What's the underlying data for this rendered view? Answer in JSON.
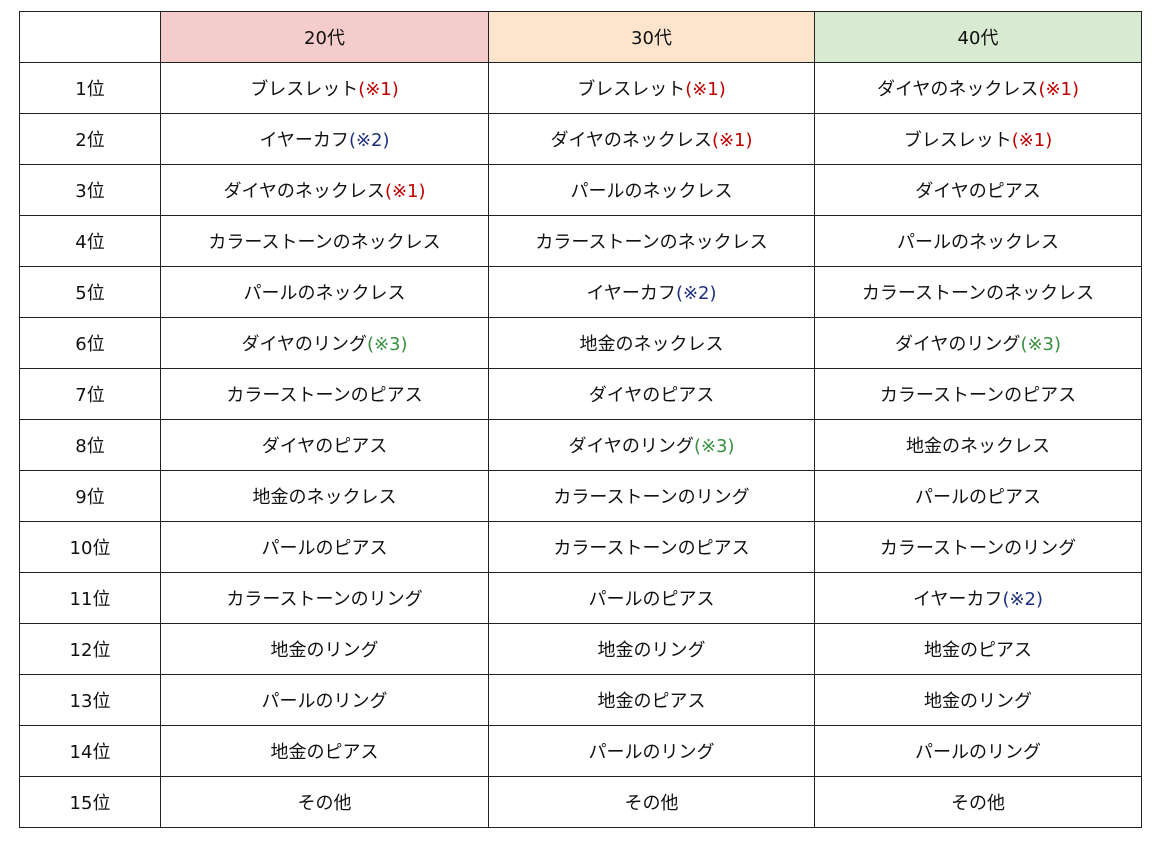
{
  "colors": {
    "header_20": "#f4cccc",
    "header_30": "#fde5cd",
    "header_40": "#d9ead3",
    "note_1": "#c00000",
    "note_2": "#1f2f80",
    "note_3": "#38903f"
  },
  "headers": [
    "",
    "20代",
    "30代",
    "40代"
  ],
  "rows": [
    {
      "rank": "1位",
      "cells": [
        {
          "text": "ブレスレット",
          "note": "(※1)",
          "note_type": "note_1"
        },
        {
          "text": "ブレスレット",
          "note": "(※1)",
          "note_type": "note_1"
        },
        {
          "text": "ダイヤのネックレス",
          "note": "(※1)",
          "note_type": "note_1"
        }
      ]
    },
    {
      "rank": "2位",
      "cells": [
        {
          "text": "イヤーカフ",
          "note": "(※2)",
          "note_type": "note_2"
        },
        {
          "text": "ダイヤのネックレス",
          "note": "(※1)",
          "note_type": "note_1"
        },
        {
          "text": "ブレスレット",
          "note": "(※1)",
          "note_type": "note_1"
        }
      ]
    },
    {
      "rank": "3位",
      "cells": [
        {
          "text": "ダイヤのネックレス",
          "note": "(※1)",
          "note_type": "note_1"
        },
        {
          "text": "パールのネックレス"
        },
        {
          "text": "ダイヤのピアス"
        }
      ]
    },
    {
      "rank": "4位",
      "cells": [
        {
          "text": "カラーストーンのネックレス"
        },
        {
          "text": "カラーストーンのネックレス"
        },
        {
          "text": "パールのネックレス"
        }
      ]
    },
    {
      "rank": "5位",
      "cells": [
        {
          "text": "パールのネックレス"
        },
        {
          "text": "イヤーカフ",
          "note": "(※2)",
          "note_type": "note_2"
        },
        {
          "text": "カラーストーンのネックレス"
        }
      ]
    },
    {
      "rank": "6位",
      "cells": [
        {
          "text": "ダイヤのリング",
          "note": "(※3)",
          "note_type": "note_3"
        },
        {
          "text": "地金のネックレス"
        },
        {
          "text": "ダイヤのリング",
          "note": "(※3)",
          "note_type": "note_3"
        }
      ]
    },
    {
      "rank": "7位",
      "cells": [
        {
          "text": "カラーストーンのピアス"
        },
        {
          "text": "ダイヤのピアス"
        },
        {
          "text": "カラーストーンのピアス"
        }
      ]
    },
    {
      "rank": "8位",
      "cells": [
        {
          "text": "ダイヤのピアス"
        },
        {
          "text": "ダイヤのリング",
          "note": "(※3)",
          "note_type": "note_3"
        },
        {
          "text": "地金のネックレス"
        }
      ]
    },
    {
      "rank": "9位",
      "cells": [
        {
          "text": "地金のネックレス"
        },
        {
          "text": "カラーストーンのリング"
        },
        {
          "text": "パールのピアス"
        }
      ]
    },
    {
      "rank": "10位",
      "cells": [
        {
          "text": "パールのピアス"
        },
        {
          "text": "カラーストーンのピアス"
        },
        {
          "text": "カラーストーンのリング"
        }
      ]
    },
    {
      "rank": "11位",
      "cells": [
        {
          "text": "カラーストーンのリング"
        },
        {
          "text": "パールのピアス"
        },
        {
          "text": "イヤーカフ",
          "note": "(※2)",
          "note_type": "note_2"
        }
      ]
    },
    {
      "rank": "12位",
      "cells": [
        {
          "text": "地金のリング"
        },
        {
          "text": "地金のリング"
        },
        {
          "text": "地金のピアス"
        }
      ]
    },
    {
      "rank": "13位",
      "cells": [
        {
          "text": "パールのリング"
        },
        {
          "text": "地金のピアス"
        },
        {
          "text": "地金のリング"
        }
      ]
    },
    {
      "rank": "14位",
      "cells": [
        {
          "text": "地金のピアス"
        },
        {
          "text": "パールのリング"
        },
        {
          "text": "パールのリング"
        }
      ]
    },
    {
      "rank": "15位",
      "cells": [
        {
          "text": "その他"
        },
        {
          "text": "その他"
        },
        {
          "text": "その他"
        }
      ]
    }
  ]
}
